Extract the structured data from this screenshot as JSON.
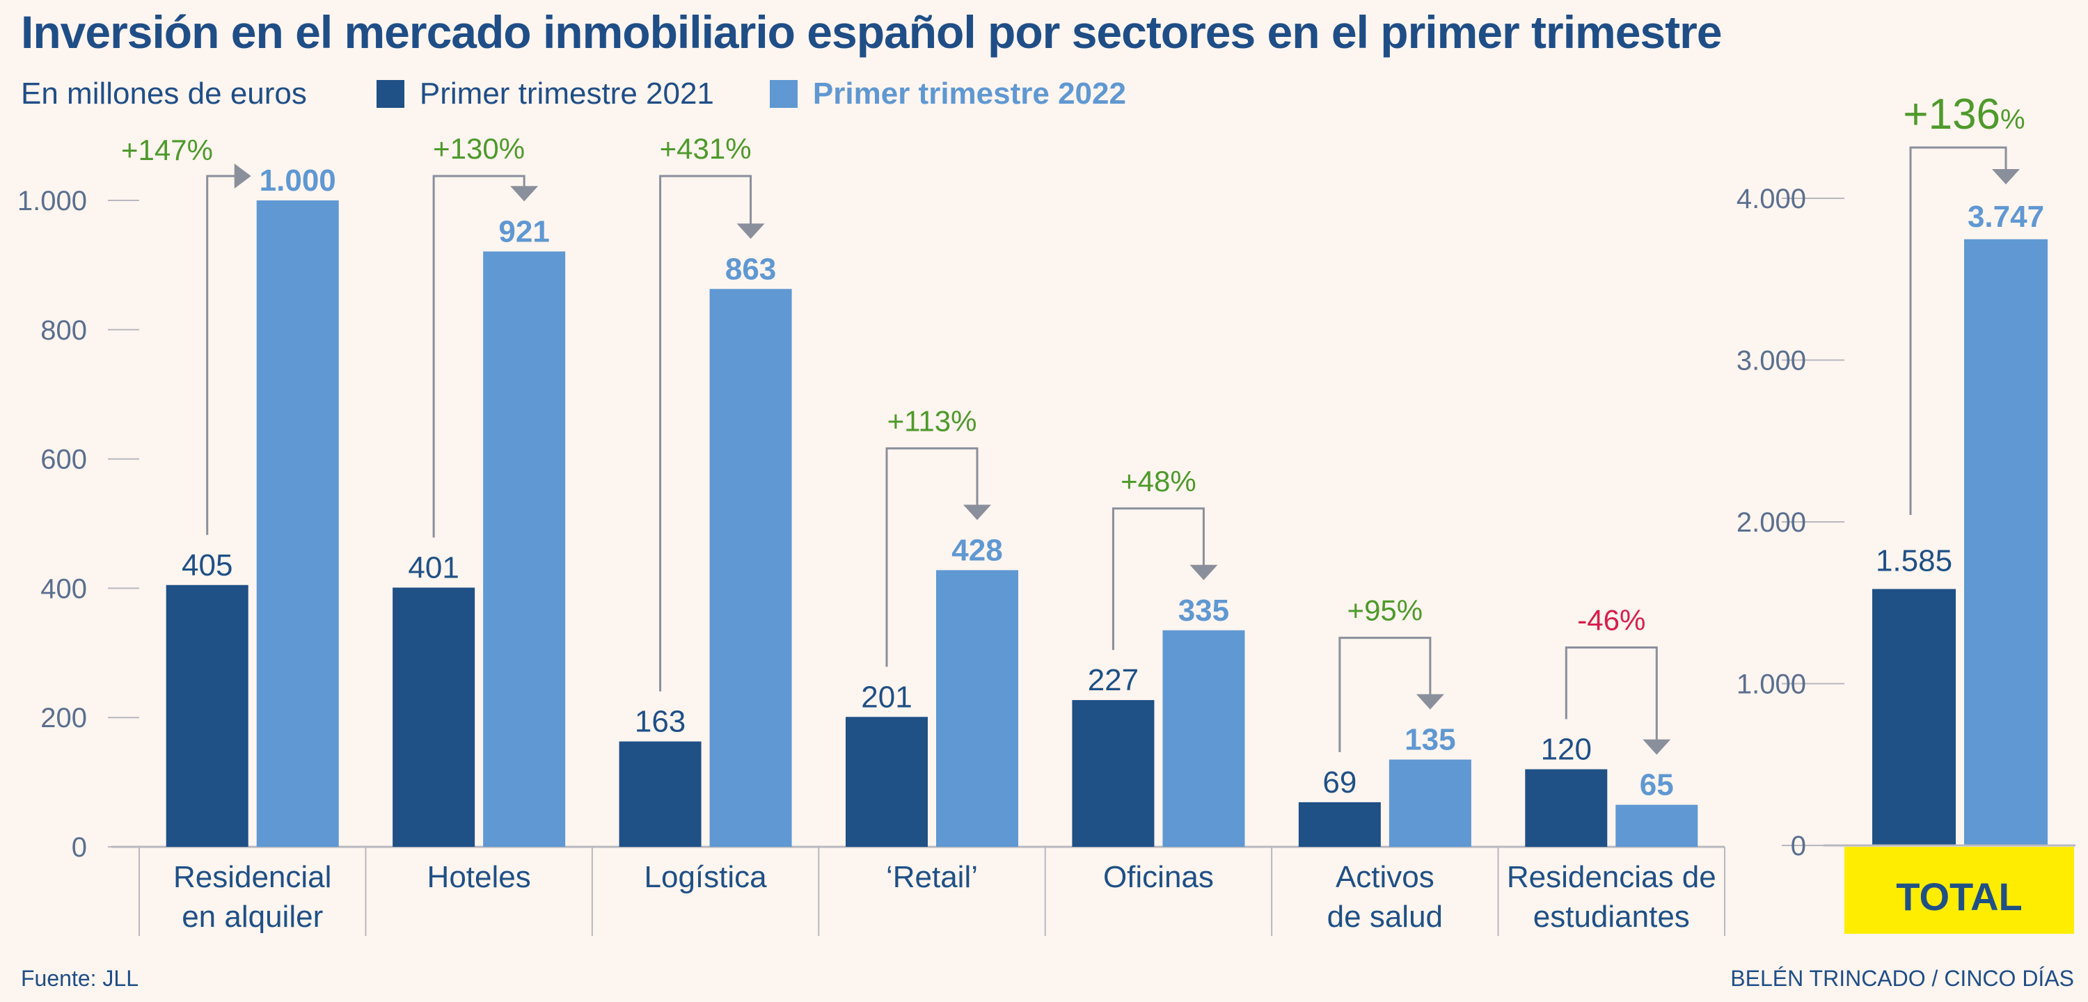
{
  "title": "Inversión en el mercado inmobiliario español por sectores en el primer trimestre",
  "unit_label": "En millones de euros",
  "legend": {
    "series1": "Primer trimestre 2021",
    "series2": "Primer trimestre 2022"
  },
  "colors": {
    "series1": "#1f5086",
    "series2": "#5f98d2",
    "increase": "#4e9a2c",
    "decrease": "#d61e4b",
    "axis_text": "#5a6f8f",
    "total_box": "#ffed00",
    "arrow": "#8a8f9c"
  },
  "chart_data": [
    {
      "type": "bar",
      "categories": [
        "Residencial en alquiler",
        "Hoteles",
        "Logística",
        "‘Retail’",
        "Oficinas",
        "Activos de salud",
        "Residencias de estudiantes"
      ],
      "category_lines": [
        [
          "Residencial",
          "en alquiler"
        ],
        [
          "Hoteles"
        ],
        [
          "Logística"
        ],
        [
          "‘Retail’"
        ],
        [
          "Oficinas"
        ],
        [
          "Activos",
          "de salud"
        ],
        [
          "Residencias de",
          "estudiantes"
        ]
      ],
      "series": [
        {
          "name": "Primer trimestre 2021",
          "values": [
            405,
            401,
            163,
            201,
            227,
            69,
            120
          ],
          "labels": [
            "405",
            "401",
            "163",
            "201",
            "227",
            "69",
            "120"
          ]
        },
        {
          "name": "Primer trimestre 2022",
          "values": [
            1000,
            921,
            863,
            428,
            335,
            135,
            65
          ],
          "labels": [
            "1.000",
            "921",
            "863",
            "428",
            "335",
            "135",
            "65"
          ]
        }
      ],
      "changes": [
        "+147%",
        "+130%",
        "+431%",
        "+113%",
        "+48%",
        "+95%",
        "-46%"
      ],
      "ylim": [
        0,
        1000
      ],
      "yticks": [
        0,
        200,
        400,
        600,
        800,
        1000
      ],
      "ytick_labels": [
        "0",
        "200",
        "400",
        "600",
        "800",
        "1.000"
      ],
      "grid": false
    },
    {
      "type": "bar",
      "categories": [
        "TOTAL"
      ],
      "series": [
        {
          "name": "Primer trimestre 2021",
          "values": [
            1585
          ],
          "labels": [
            "1.585"
          ]
        },
        {
          "name": "Primer trimestre 2022",
          "values": [
            3747
          ],
          "labels": [
            "3.747"
          ]
        }
      ],
      "change": {
        "number": "+136",
        "unit": "%"
      },
      "ylim": [
        0,
        4000
      ],
      "yticks": [
        0,
        1000,
        2000,
        3000,
        4000
      ],
      "ytick_labels": [
        "0",
        "1.000",
        "2.000",
        "3.000",
        "4.000"
      ],
      "grid": false
    }
  ],
  "source": "Fuente: JLL",
  "credit": "BELÉN TRINCADO / CINCO DÍAS"
}
